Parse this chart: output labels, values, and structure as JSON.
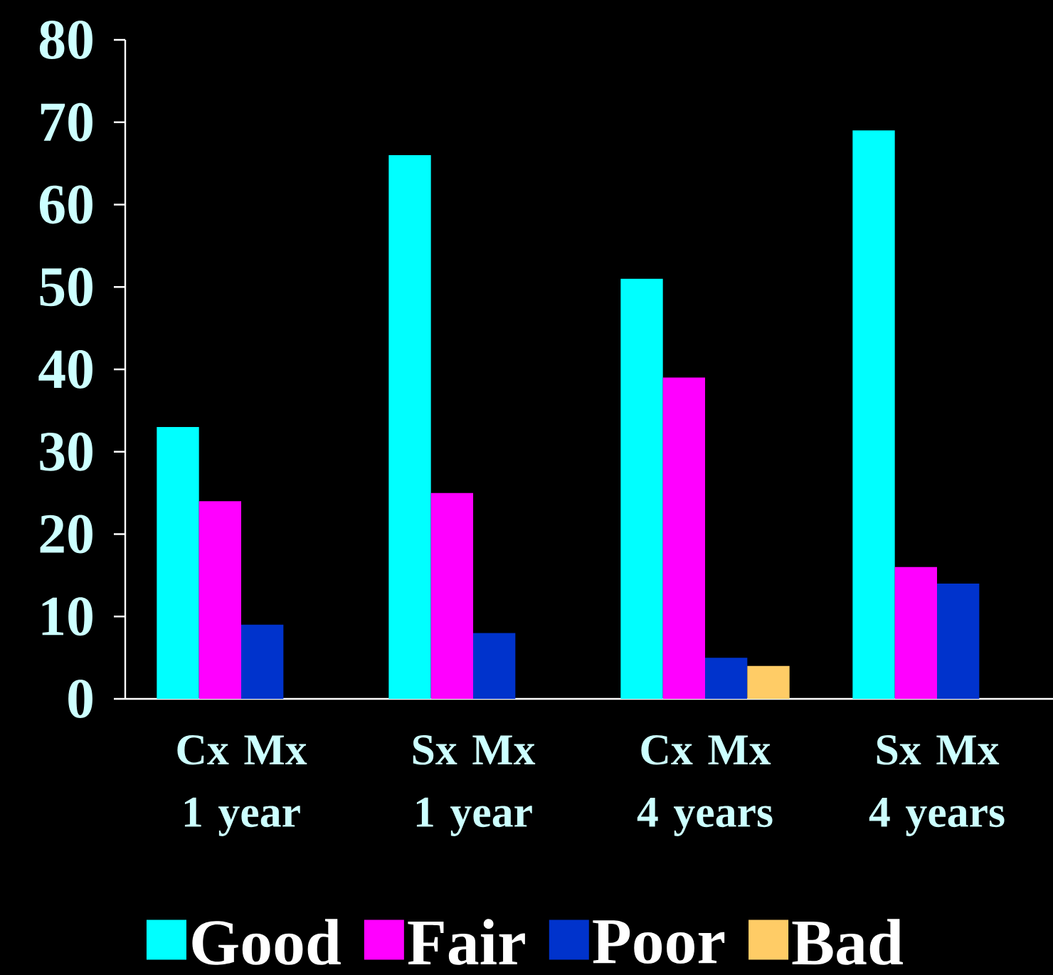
{
  "chart_data": {
    "type": "bar",
    "categories": [
      "Cx Mx 1 year",
      "Sx Mx 1 year",
      "Cx Mx 4 years",
      "Sx Mx 4 years"
    ],
    "series": [
      {
        "name": "Good",
        "color": "#00ffff",
        "values": [
          33,
          66,
          51,
          69
        ]
      },
      {
        "name": "Fair",
        "color": "#ff00ff",
        "values": [
          24,
          25,
          39,
          16
        ]
      },
      {
        "name": "Poor",
        "color": "#0033cc",
        "values": [
          9,
          8,
          5,
          14
        ]
      },
      {
        "name": "Bad",
        "color": "#ffcc66",
        "values": [
          null,
          null,
          4,
          null
        ]
      }
    ],
    "ylim": [
      0,
      80
    ],
    "yticks": [
      0,
      10,
      20,
      30,
      40,
      50,
      60,
      70,
      80
    ],
    "legend": "bottom"
  }
}
